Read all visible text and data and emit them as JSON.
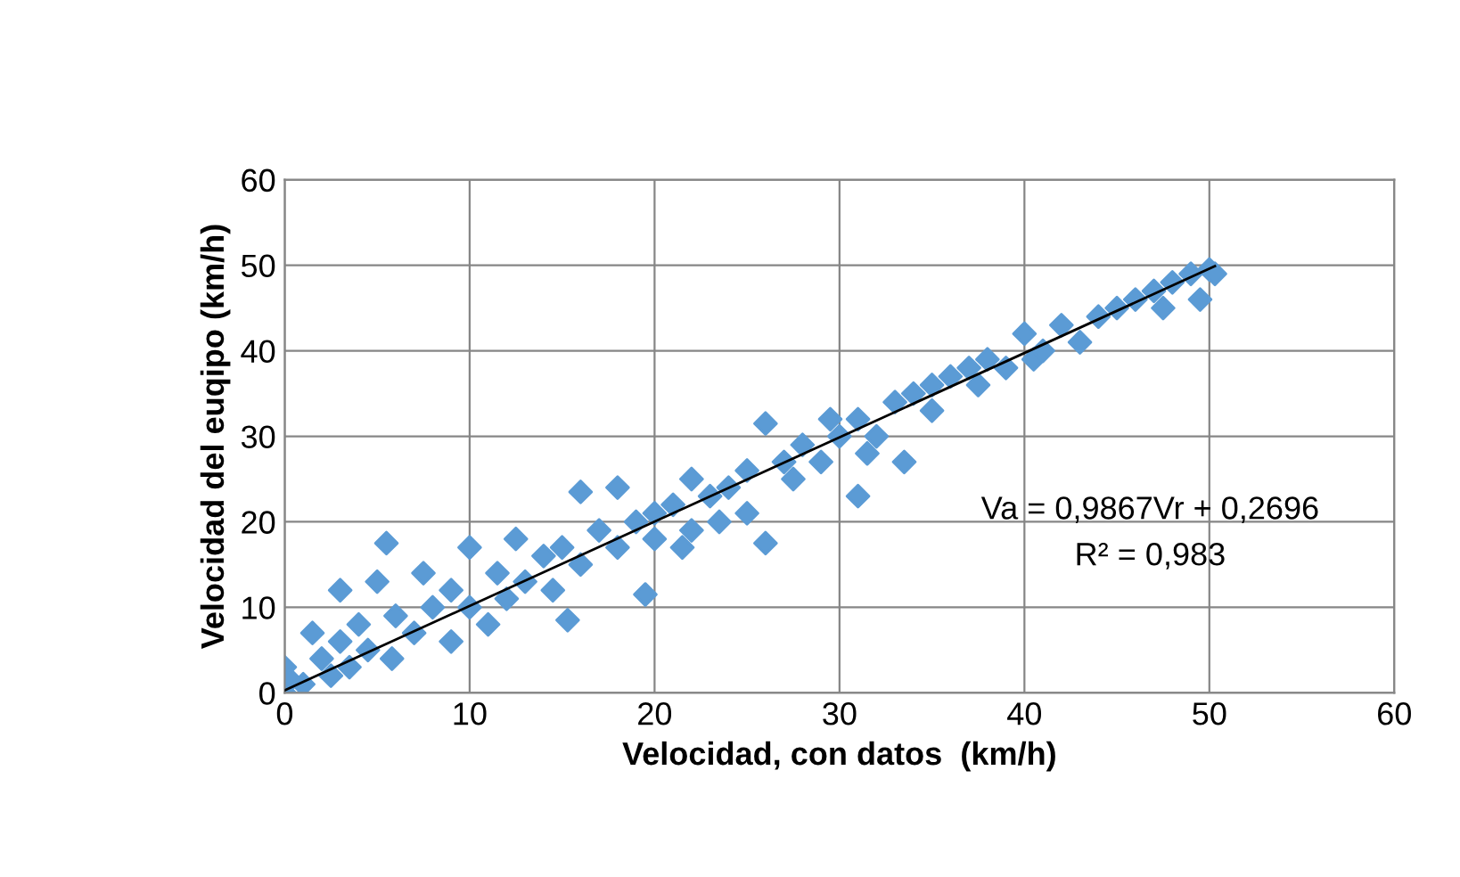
{
  "chart_data": {
    "type": "scatter",
    "xlabel": "Velocidad, con datos  (km/h)",
    "ylabel": "Velocidad del euqipo (km/h)",
    "xlim": [
      0,
      60
    ],
    "ylim": [
      0,
      60
    ],
    "xticks": [
      0,
      10,
      20,
      30,
      40,
      50,
      60
    ],
    "yticks": [
      0,
      10,
      20,
      30,
      40,
      50,
      60
    ],
    "grid": true,
    "legend": false,
    "series": [
      {
        "color": "#5b9bd5",
        "marker": "diamond",
        "x": [
          0,
          0,
          0.3,
          1,
          1.5,
          2,
          2.5,
          3,
          3,
          3.5,
          4,
          4.5,
          5,
          5.5,
          5.8,
          6,
          7,
          7.5,
          8,
          9,
          9,
          10,
          10,
          11,
          11.5,
          12,
          12.5,
          13,
          14,
          14.5,
          15,
          15.3,
          16,
          16,
          17,
          18,
          18,
          19,
          19.5,
          20,
          20,
          21,
          21.5,
          22,
          22,
          23,
          23.5,
          24,
          25,
          25,
          26,
          26,
          27,
          27.5,
          28,
          29,
          29.5,
          30,
          31,
          31,
          31.5,
          32,
          33,
          33.5,
          34,
          35,
          35,
          36,
          37,
          37.5,
          38,
          39,
          40,
          40.5,
          41,
          42,
          43,
          44,
          45,
          46,
          47,
          47.5,
          48,
          49,
          49.5,
          50,
          50.3
        ],
        "values": [
          0,
          3,
          1.5,
          1,
          7,
          4,
          2,
          6,
          12,
          3,
          8,
          5,
          13,
          17.5,
          4,
          9,
          7,
          14,
          10,
          6,
          12,
          17,
          10,
          8,
          14,
          11,
          18,
          13,
          16,
          12,
          17,
          8.5,
          23.5,
          15,
          19,
          24,
          17,
          20,
          11.5,
          21,
          18,
          22,
          17,
          25,
          19,
          23,
          20,
          24,
          21,
          26,
          31.5,
          17.5,
          27,
          25,
          29,
          27,
          32,
          30,
          32,
          23,
          28,
          30,
          34,
          27,
          35,
          36,
          33,
          37,
          38,
          36,
          39,
          38,
          42,
          39,
          40,
          43,
          41,
          44,
          45,
          46,
          47,
          45,
          48,
          49,
          46,
          49.5,
          49
        ]
      },
      {
        "type": "line",
        "marker": "none",
        "color": "#000000",
        "x": [
          0,
          50.3
        ],
        "values": [
          0.3,
          49.9
        ]
      }
    ],
    "annotations": [
      "Va = 0,9867Vr + 0,2696",
      "R² = 0,983"
    ]
  }
}
